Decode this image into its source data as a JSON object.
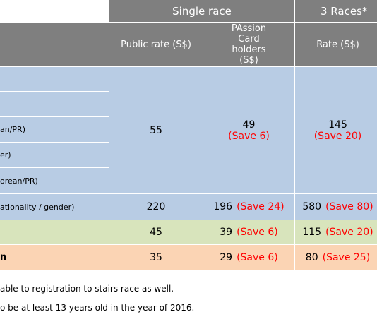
{
  "header": {
    "group_row": [
      "Single race",
      "3 Races*"
    ],
    "columns": [
      "Public rate (S$)",
      "PAssion Card holders (S$)",
      "Rate (S$)"
    ]
  },
  "table": {
    "group": {
      "color": "#b8cce4",
      "labels": [
        "an/PR)",
        "er)",
        "orean/PR)"
      ],
      "public": "55",
      "passion": {
        "price": "49",
        "save": "(Save 6)"
      },
      "three": {
        "price": "145",
        "save": "(Save 20)"
      }
    },
    "rows": [
      {
        "color": "#b8cce4",
        "label": "ationality / gender)",
        "public": "220",
        "passion": {
          "price": "196",
          "save": "(Save 24)"
        },
        "three": {
          "price": "580",
          "save": "(Save 80)"
        }
      },
      {
        "color": "#d8e4bc",
        "public": "45",
        "passion": {
          "price": "39",
          "save": "(Save 6)"
        },
        "three": {
          "price": "115",
          "save": "(Save 20)"
        }
      },
      {
        "color": "#fbd4b4",
        "label": "n",
        "bold": true,
        "public": "35",
        "passion": {
          "price": "29",
          "save": "(Save 6)"
        },
        "three": {
          "price": "80",
          "save": "(Save 25)"
        }
      }
    ]
  },
  "footnotes": [
    "able to registration to stairs race as well.",
    "o be at least 13 years old in the year of 2016."
  ]
}
